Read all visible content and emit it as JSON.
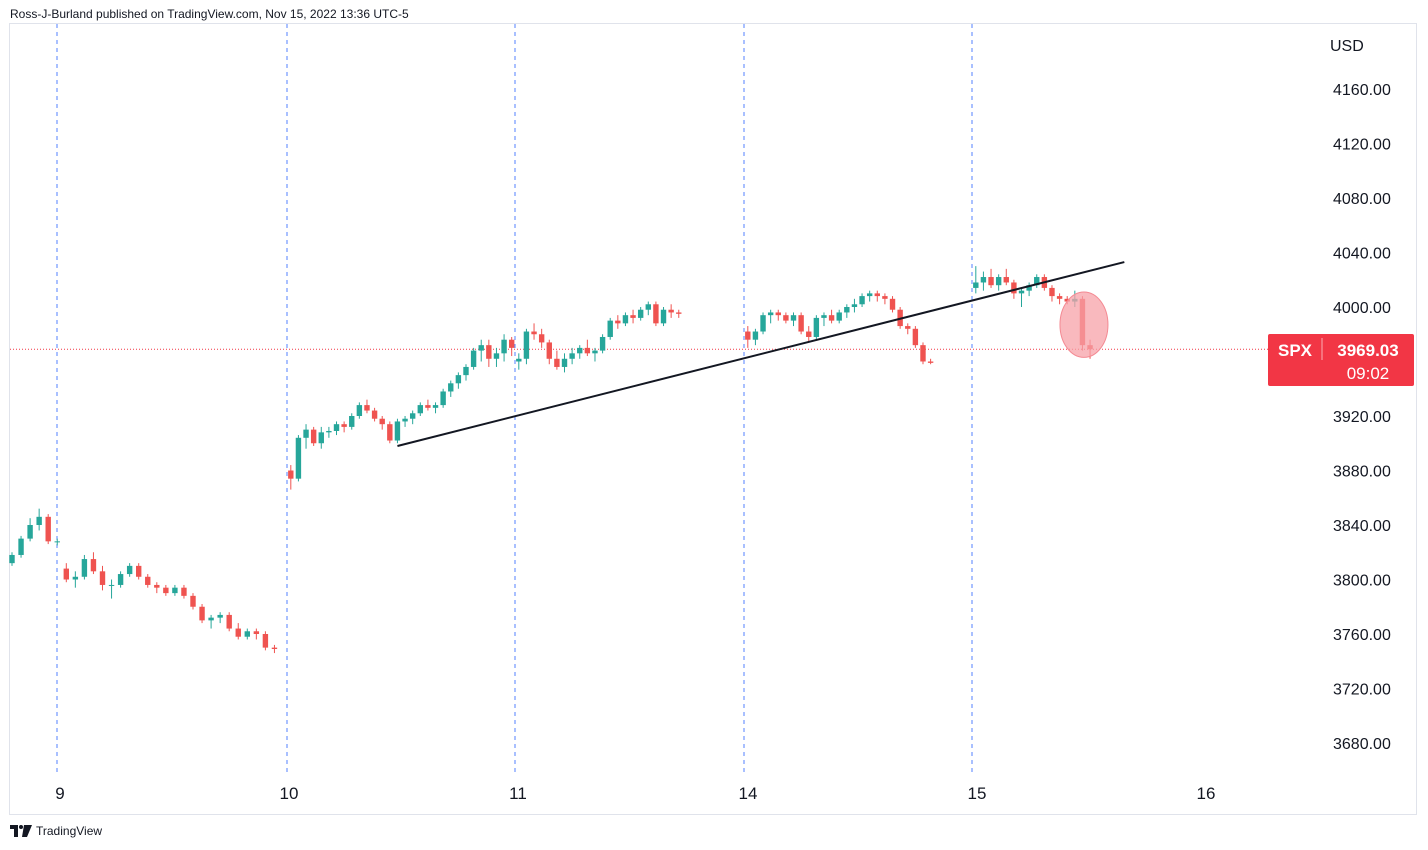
{
  "header": {
    "published_by": "Ross-J-Burland published on TradingView.com, Nov 15, 2022 13:36 UTC-5"
  },
  "footer": {
    "brand": "TradingView",
    "logo_icon": "tradingview-logo-icon"
  },
  "colors": {
    "up": "#26a69a",
    "down": "#ef5350",
    "accent": "#f23645",
    "grid_dash": "#2962ff",
    "trendline": "#131722",
    "highlight": "#f7a1a8"
  },
  "chart_data": {
    "type": "candlestick",
    "symbol": "SPX",
    "currency_label": "USD",
    "last_price": "3969.03",
    "last_price_value": 3969.03,
    "countdown": "09:02",
    "ylim": [
      3650,
      4180
    ],
    "y_ticks": [
      {
        "value": 4160,
        "label": "4160.00"
      },
      {
        "value": 4120,
        "label": "4120.00"
      },
      {
        "value": 4080,
        "label": "4080.00"
      },
      {
        "value": 4040,
        "label": "4040.00"
      },
      {
        "value": 4000,
        "label": "4000.00"
      },
      {
        "value": 3920,
        "label": "3920.00"
      },
      {
        "value": 3880,
        "label": "3880.00"
      },
      {
        "value": 3840,
        "label": "3840.00"
      },
      {
        "value": 3800,
        "label": "3800.00"
      },
      {
        "value": 3760,
        "label": "3760.00"
      },
      {
        "value": 3720,
        "label": "3720.00"
      },
      {
        "value": 3680,
        "label": "3680.00"
      }
    ],
    "x_ticks": [
      "9",
      "10",
      "11",
      "14",
      "15",
      "16"
    ],
    "sessions": [
      {
        "label": "9",
        "candles": [
          [
            3812,
            3820,
            3810,
            3818
          ],
          [
            3818,
            3832,
            3816,
            3830
          ],
          [
            3830,
            3845,
            3828,
            3840
          ],
          [
            3840,
            3852,
            3836,
            3846
          ],
          [
            3846,
            3848,
            3826,
            3828
          ],
          [
            3828,
            3830,
            3825,
            3828
          ],
          [
            3808,
            3812,
            3798,
            3800
          ],
          [
            3800,
            3806,
            3794,
            3802
          ],
          [
            3802,
            3818,
            3800,
            3815
          ],
          [
            3815,
            3820,
            3804,
            3806
          ],
          [
            3806,
            3810,
            3792,
            3796
          ],
          [
            3796,
            3800,
            3786,
            3796
          ],
          [
            3796,
            3806,
            3794,
            3804
          ],
          [
            3804,
            3812,
            3802,
            3810
          ],
          [
            3810,
            3812,
            3800,
            3802
          ],
          [
            3802,
            3804,
            3794,
            3796
          ],
          [
            3796,
            3798,
            3790,
            3794
          ],
          [
            3794,
            3796,
            3788,
            3790
          ],
          [
            3790,
            3796,
            3788,
            3794
          ],
          [
            3794,
            3796,
            3786,
            3788
          ],
          [
            3788,
            3790,
            3778,
            3780
          ],
          [
            3780,
            3782,
            3768,
            3770
          ],
          [
            3770,
            3774,
            3764,
            3772
          ],
          [
            3772,
            3776,
            3768,
            3774
          ],
          [
            3774,
            3776,
            3762,
            3764
          ],
          [
            3764,
            3768,
            3756,
            3758
          ],
          [
            3758,
            3764,
            3756,
            3762
          ],
          [
            3762,
            3764,
            3756,
            3760
          ],
          [
            3760,
            3762,
            3748,
            3750
          ],
          [
            3750,
            3752,
            3746,
            3749
          ]
        ]
      },
      {
        "label": "10",
        "candles": [
          [
            3880,
            3884,
            3866,
            3874
          ],
          [
            3874,
            3906,
            3872,
            3904
          ],
          [
            3904,
            3914,
            3896,
            3910
          ],
          [
            3910,
            3912,
            3898,
            3900
          ],
          [
            3900,
            3912,
            3896,
            3908
          ],
          [
            3908,
            3912,
            3904,
            3909
          ],
          [
            3909,
            3916,
            3906,
            3914
          ],
          [
            3914,
            3916,
            3908,
            3912
          ],
          [
            3912,
            3922,
            3910,
            3920
          ],
          [
            3920,
            3930,
            3918,
            3928
          ],
          [
            3928,
            3932,
            3922,
            3924
          ],
          [
            3924,
            3926,
            3916,
            3918
          ],
          [
            3918,
            3920,
            3910,
            3914
          ],
          [
            3914,
            3916,
            3900,
            3902
          ],
          [
            3902,
            3918,
            3900,
            3916
          ],
          [
            3916,
            3920,
            3912,
            3918
          ],
          [
            3918,
            3924,
            3914,
            3922
          ],
          [
            3922,
            3930,
            3920,
            3928
          ],
          [
            3928,
            3932,
            3924,
            3926
          ],
          [
            3926,
            3930,
            3922,
            3928
          ],
          [
            3928,
            3940,
            3926,
            3938
          ],
          [
            3938,
            3946,
            3934,
            3944
          ],
          [
            3944,
            3952,
            3940,
            3950
          ],
          [
            3950,
            3958,
            3946,
            3956
          ],
          [
            3956,
            3970,
            3954,
            3968
          ],
          [
            3968,
            3976,
            3960,
            3972
          ],
          [
            3972,
            3976,
            3956,
            3962
          ],
          [
            3962,
            3970,
            3956,
            3966
          ],
          [
            3966,
            3980,
            3960,
            3976
          ],
          [
            3976,
            3978,
            3964,
            3970
          ]
        ]
      },
      {
        "label": "11",
        "candles": [
          [
            3960,
            3966,
            3954,
            3962
          ],
          [
            3962,
            3984,
            3958,
            3982
          ],
          [
            3982,
            3988,
            3976,
            3980
          ],
          [
            3980,
            3984,
            3970,
            3974
          ],
          [
            3974,
            3976,
            3958,
            3962
          ],
          [
            3962,
            3968,
            3954,
            3956
          ],
          [
            3956,
            3966,
            3952,
            3962
          ],
          [
            3962,
            3970,
            3958,
            3966
          ],
          [
            3966,
            3972,
            3962,
            3970
          ],
          [
            3970,
            3976,
            3964,
            3966
          ],
          [
            3966,
            3970,
            3960,
            3968
          ],
          [
            3968,
            3980,
            3966,
            3978
          ],
          [
            3978,
            3992,
            3976,
            3990
          ],
          [
            3990,
            3994,
            3984,
            3988
          ],
          [
            3988,
            3996,
            3986,
            3994
          ],
          [
            3994,
            3998,
            3988,
            3992
          ],
          [
            3992,
            4000,
            3990,
            3998
          ],
          [
            3998,
            4004,
            3994,
            4002
          ],
          [
            4002,
            4004,
            3986,
            3988
          ],
          [
            3988,
            4000,
            3986,
            3998
          ],
          [
            3998,
            4002,
            3992,
            3996
          ],
          [
            3996,
            3998,
            3992,
            3995
          ]
        ]
      },
      {
        "label": "14",
        "candles": [
          [
            3982,
            3986,
            3970,
            3976
          ],
          [
            3976,
            3984,
            3972,
            3982
          ],
          [
            3982,
            3996,
            3980,
            3994
          ],
          [
            3994,
            3998,
            3988,
            3996
          ],
          [
            3996,
            3998,
            3990,
            3994
          ],
          [
            3994,
            3996,
            3988,
            3990
          ],
          [
            3990,
            3996,
            3986,
            3994
          ],
          [
            3994,
            3996,
            3980,
            3982
          ],
          [
            3982,
            3986,
            3974,
            3978
          ],
          [
            3978,
            3994,
            3976,
            3992
          ],
          [
            3992,
            3996,
            3986,
            3994
          ],
          [
            3994,
            3998,
            3988,
            3990
          ],
          [
            3990,
            3998,
            3988,
            3996
          ],
          [
            3996,
            4002,
            3992,
            4000
          ],
          [
            4000,
            4006,
            3996,
            4002
          ],
          [
            4002,
            4010,
            4000,
            4008
          ],
          [
            4008,
            4012,
            4004,
            4010
          ],
          [
            4010,
            4012,
            4004,
            4008
          ],
          [
            4008,
            4010,
            4002,
            4006
          ],
          [
            4006,
            4008,
            3996,
            3998
          ],
          [
            3998,
            4000,
            3984,
            3986
          ],
          [
            3986,
            3988,
            3980,
            3984
          ],
          [
            3984,
            3986,
            3970,
            3972
          ],
          [
            3972,
            3974,
            3958,
            3960
          ],
          [
            3960,
            3962,
            3958,
            3959
          ]
        ]
      },
      {
        "label": "15",
        "candles": [
          [
            4014,
            4030,
            4010,
            4018
          ],
          [
            4018,
            4026,
            4012,
            4022
          ],
          [
            4022,
            4028,
            4014,
            4016
          ],
          [
            4016,
            4024,
            4012,
            4022
          ],
          [
            4022,
            4028,
            4016,
            4018
          ],
          [
            4018,
            4020,
            4006,
            4010
          ],
          [
            4010,
            4014,
            4000,
            4012
          ],
          [
            4012,
            4018,
            4008,
            4016
          ],
          [
            4016,
            4024,
            4014,
            4022
          ],
          [
            4022,
            4024,
            4012,
            4014
          ],
          [
            4014,
            4016,
            4004,
            4008
          ],
          [
            4008,
            4010,
            4002,
            4006
          ],
          [
            4006,
            4008,
            4002,
            4004
          ],
          [
            4004,
            4012,
            4000,
            4006
          ],
          [
            4006,
            4008,
            3968,
            3972
          ],
          [
            3972,
            3976,
            3962,
            3969
          ]
        ]
      }
    ],
    "trendline": {
      "start": {
        "session": 1,
        "bar": 14,
        "price": 3898
      },
      "end": {
        "session": 4,
        "bar": 19.5,
        "price": 4033
      }
    },
    "highlight_ellipse": {
      "session": 4,
      "bar": 14.2,
      "price_center": 3987,
      "price_radius": 24
    }
  }
}
